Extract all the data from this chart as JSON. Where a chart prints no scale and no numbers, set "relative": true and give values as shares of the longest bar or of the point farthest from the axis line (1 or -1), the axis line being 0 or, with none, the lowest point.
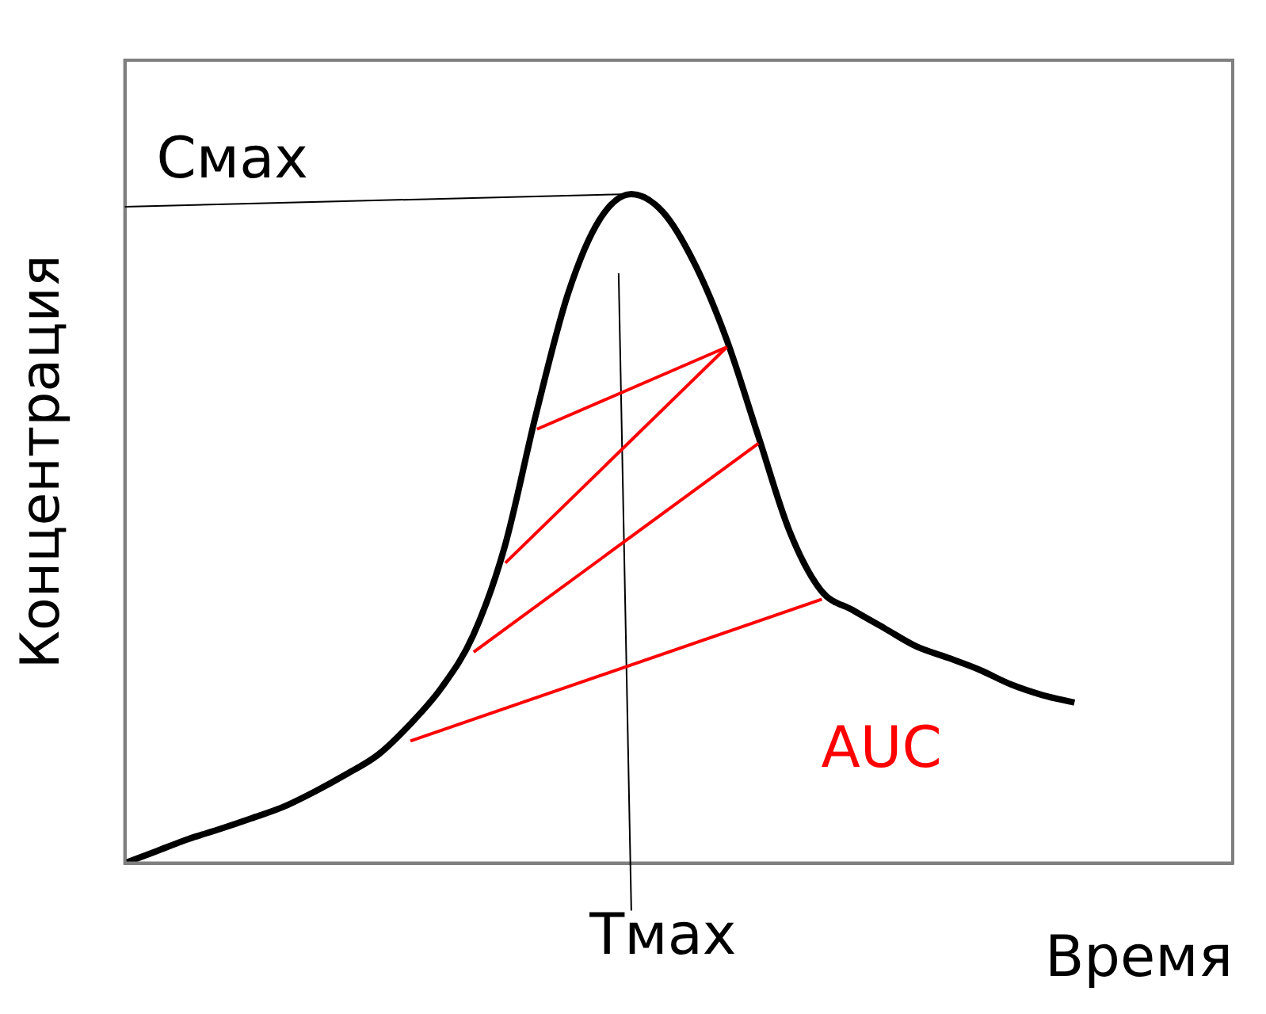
{
  "chart_data": {
    "type": "line",
    "relative": true,
    "xlabel": "Время",
    "ylabel": "Концентрация",
    "categories": [
      null,
      null,
      null,
      null,
      null,
      null,
      null,
      null,
      null,
      null,
      null,
      null,
      null,
      null,
      null,
      null,
      null,
      null,
      null,
      null,
      null,
      null,
      null,
      null,
      null,
      null,
      null,
      null,
      null,
      null,
      null,
      null,
      null,
      null,
      null,
      null
    ],
    "values": [
      0,
      0.018,
      0.036,
      0.051,
      0.067,
      0.084,
      0.107,
      0.133,
      0.162,
      0.207,
      0.262,
      0.34,
      0.473,
      0.673,
      0.851,
      0.962,
      1,
      0.973,
      0.896,
      0.784,
      0.64,
      0.496,
      0.407,
      0.378,
      0.351,
      0.324,
      0.307,
      0.289,
      0.267,
      0.251,
      0.24,
      null,
      null,
      null,
      null,
      null
    ],
    "color": "#000000",
    "marker": "none",
    "grid": false,
    "legend": false,
    "tick_labels": false,
    "annotations": [
      "Смах",
      "Тмах",
      "AUC"
    ]
  }
}
